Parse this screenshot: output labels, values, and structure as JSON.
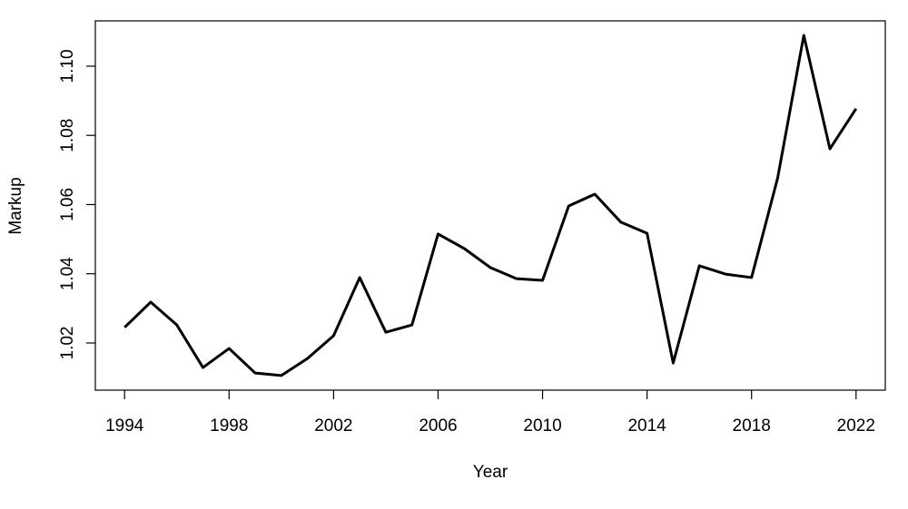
{
  "chart_data": {
    "type": "line",
    "x_label": "Year",
    "y_label": "Markup",
    "x": [
      1994,
      1995,
      1996,
      1997,
      1998,
      1999,
      2000,
      2001,
      2002,
      2003,
      2004,
      2005,
      2006,
      2007,
      2008,
      2009,
      2010,
      2011,
      2012,
      2013,
      2014,
      2015,
      2016,
      2017,
      2018,
      2019,
      2020,
      2021,
      2022
    ],
    "values": [
      1.0245,
      1.0318,
      1.0252,
      1.0129,
      1.0184,
      1.0113,
      1.0106,
      1.0155,
      1.0221,
      1.0389,
      1.0231,
      1.0252,
      1.0515,
      1.0473,
      1.0418,
      1.0386,
      1.0381,
      1.0596,
      1.063,
      1.0549,
      1.0517,
      1.0142,
      1.0423,
      1.0399,
      1.0389,
      1.0677,
      1.1089,
      1.0761,
      1.0877
    ],
    "color": "#000000",
    "xlim": [
      1992.88,
      2023.12
    ],
    "xticks": [
      1994,
      1998,
      2002,
      2006,
      2010,
      2014,
      2018,
      2022
    ],
    "ylim": [
      1.00636,
      1.1131
    ],
    "yticks": [
      1.02,
      1.04,
      1.06,
      1.08,
      {
        "value": 1.1,
        "label": "1.10"
      }
    ]
  }
}
